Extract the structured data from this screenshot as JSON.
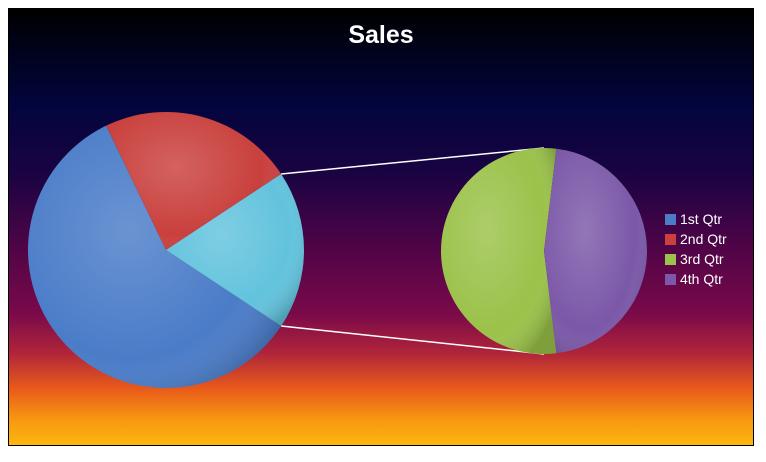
{
  "chart_data": {
    "type": "pie",
    "subtype": "pie-of-pie",
    "title": "Sales",
    "categories": [
      "1st Qtr",
      "2nd Qtr",
      "3rd Qtr",
      "4th Qtr"
    ],
    "values": [
      8.2,
      3.2,
      1.4,
      1.2
    ],
    "secondary_plot_categories": [
      "3rd Qtr",
      "4th Qtr"
    ],
    "colors": [
      "#4a7cc8",
      "#c9403d",
      "#9bc24a",
      "#7b58a8"
    ],
    "other_slice_color": "#62c3dd",
    "legend_position": "right",
    "background": "vertical gradient, dark navy top to orange bottom"
  }
}
